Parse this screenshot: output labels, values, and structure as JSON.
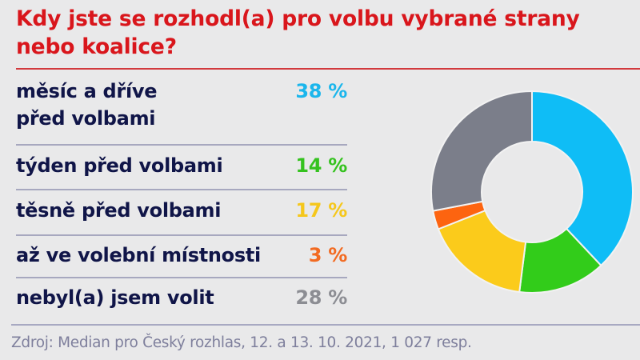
{
  "title": "Kdy jste se rozhodl(a) pro volbu vybrané strany nebo koalice?",
  "rows": [
    {
      "label": "měsíc a dříve před volbami",
      "label_line1": "měsíc a dříve",
      "label_line2": "před volbami",
      "value_text": "38 %",
      "color": "#19b8ee"
    },
    {
      "label": "týden před volbami",
      "value_text": "14 %",
      "color": "#2ec41c"
    },
    {
      "label": "těsně před volbami",
      "value_text": "17 %",
      "color": "#f7c81d"
    },
    {
      "label": "až ve volební místnosti",
      "value_text": "3 %",
      "color": "#f0661f"
    },
    {
      "label": "nebyl(a) jsem volit",
      "value_text": "28 %",
      "color": "#8a8b92"
    }
  ],
  "source": "Zdroj: Median pro Český rozhlas, 12. a 13. 10. 2021, 1 027 resp.",
  "chart_data": {
    "type": "pie",
    "subtype": "donut",
    "title": "Kdy jste se rozhodl(a) pro volbu vybrané strany nebo koalice?",
    "categories": [
      "měsíc a dříve před volbami",
      "týden před volbami",
      "těsně před volbami",
      "až ve volební místnosti",
      "nebyl(a) jsem volit"
    ],
    "values": [
      38,
      14,
      17,
      3,
      28
    ],
    "unit": "%",
    "colors": [
      "#0fbdf6",
      "#32cc1a",
      "#fbcb1b",
      "#fd6410",
      "#7b7e8a"
    ],
    "start_angle_deg": 0,
    "direction": "clockwise",
    "legend_position": "left",
    "note": "Zdroj: Median pro Český rozhlas, 12. a 13. 10. 2021, 1 027 resp."
  }
}
